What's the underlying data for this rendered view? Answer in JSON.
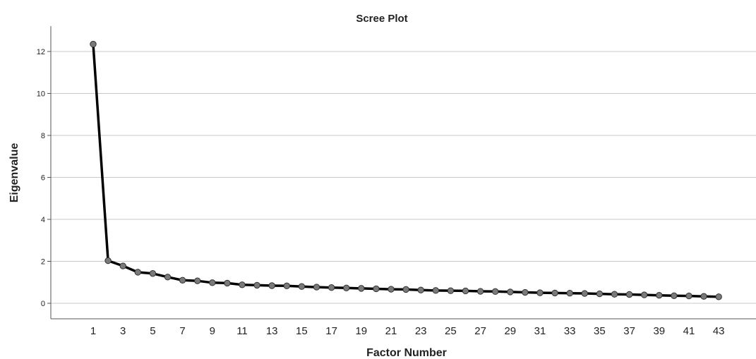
{
  "chart_data": {
    "type": "line",
    "title": "Scree Plot",
    "xlabel": "Factor Number",
    "ylabel": "Eigenvalue",
    "xlim": [
      0,
      44
    ],
    "ylim": [
      -0.7,
      13.1
    ],
    "y_ticks": [
      0,
      2,
      4,
      6,
      8,
      10,
      12
    ],
    "x_tick_labels": [
      "1",
      "3",
      "5",
      "7",
      "9",
      "11",
      "13",
      "15",
      "17",
      "19",
      "21",
      "23",
      "25",
      "27",
      "29",
      "31",
      "33",
      "35",
      "37",
      "39",
      "41",
      "43"
    ],
    "grid": true,
    "x": [
      1,
      2,
      3,
      4,
      5,
      6,
      7,
      8,
      9,
      10,
      11,
      12,
      13,
      14,
      15,
      16,
      17,
      18,
      19,
      20,
      21,
      22,
      23,
      24,
      25,
      26,
      27,
      28,
      29,
      30,
      31,
      32,
      33,
      34,
      35,
      36,
      37,
      38,
      39,
      40,
      41,
      42,
      43
    ],
    "values": [
      12.35,
      2.03,
      1.78,
      1.48,
      1.42,
      1.25,
      1.1,
      1.07,
      0.98,
      0.96,
      0.88,
      0.86,
      0.84,
      0.83,
      0.8,
      0.77,
      0.75,
      0.73,
      0.71,
      0.69,
      0.67,
      0.66,
      0.63,
      0.61,
      0.6,
      0.59,
      0.57,
      0.56,
      0.54,
      0.52,
      0.5,
      0.49,
      0.48,
      0.47,
      0.45,
      0.43,
      0.42,
      0.4,
      0.38,
      0.36,
      0.35,
      0.33,
      0.31
    ]
  }
}
